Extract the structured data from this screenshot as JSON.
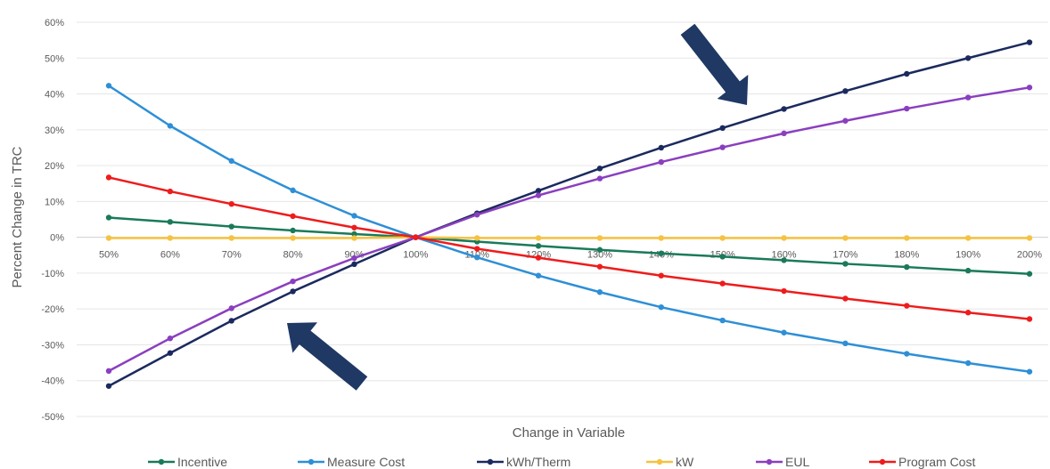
{
  "chart_data": {
    "type": "line",
    "title": "",
    "xlabel": "Change in Variable",
    "ylabel": "Percent Change in TRC",
    "categories": [
      "50%",
      "60%",
      "70%",
      "80%",
      "90%",
      "100%",
      "110%",
      "120%",
      "130%",
      "140%",
      "150%",
      "160%",
      "170%",
      "180%",
      "190%",
      "200%"
    ],
    "yticks": [
      "60%",
      "50%",
      "40%",
      "30%",
      "20%",
      "10%",
      "0%",
      "-10%",
      "-20%",
      "-30%",
      "-40%",
      "-50%"
    ],
    "ylim": [
      -50,
      60
    ],
    "grid": true,
    "legend": "bottom",
    "series": [
      {
        "name": "Incentive",
        "color": "#1a7a5a",
        "values": [
          5.5,
          4.3,
          3.0,
          1.9,
          0.9,
          0,
          -1.2,
          -2.4,
          -3.5,
          -4.5,
          -5.4,
          -6.4,
          -7.4,
          -8.3,
          -9.3,
          -10.2
        ]
      },
      {
        "name": "Measure Cost",
        "color": "#2e8fd6",
        "values": [
          42.3,
          31.1,
          21.3,
          13.1,
          6.0,
          0,
          -5.6,
          -10.7,
          -15.3,
          -19.5,
          -23.2,
          -26.6,
          -29.6,
          -32.5,
          -35.1,
          -37.5
        ]
      },
      {
        "name": "kWh/Therm",
        "color": "#1b2a5e",
        "values": [
          -41.5,
          -32.3,
          -23.3,
          -15.1,
          -7.5,
          0,
          6.7,
          13.0,
          19.2,
          25.0,
          30.5,
          35.8,
          40.8,
          45.6,
          50.0,
          54.4
        ]
      },
      {
        "name": "kW",
        "color": "#f5c242",
        "values": [
          -0.2,
          -0.2,
          -0.2,
          -0.2,
          -0.2,
          0,
          -0.2,
          -0.2,
          -0.2,
          -0.2,
          -0.2,
          -0.2,
          -0.2,
          -0.2,
          -0.2,
          -0.2
        ]
      },
      {
        "name": "EUL",
        "color": "#8a3fbf",
        "values": [
          -37.3,
          -28.2,
          -19.8,
          -12.3,
          -5.8,
          0,
          6.3,
          11.7,
          16.4,
          21.0,
          25.1,
          29.0,
          32.5,
          35.9,
          39.0,
          41.8
        ]
      },
      {
        "name": "Program Cost",
        "color": "#ee1c1c",
        "values": [
          16.7,
          12.8,
          9.3,
          5.9,
          2.7,
          0,
          -3.2,
          -5.7,
          -8.2,
          -10.7,
          -12.9,
          -15.0,
          -17.1,
          -19.1,
          -21.0,
          -22.8
        ]
      }
    ],
    "annotations": [
      {
        "shape": "arrow",
        "color": "#1f3864",
        "points_to": "kWh/Therm line near 150%"
      },
      {
        "shape": "arrow",
        "color": "#1f3864",
        "points_to": "kWh/Therm line near 80%"
      }
    ]
  }
}
